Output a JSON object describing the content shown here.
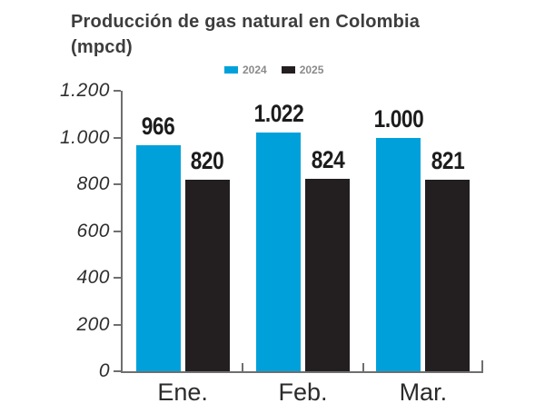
{
  "title": {
    "line1": "Producción de gas natural en Colombia",
    "line2": "(mpcd)"
  },
  "chart_data": {
    "type": "bar",
    "title": "Producción de gas natural en Colombia (mpcd)",
    "categories": [
      "Ene.",
      "Feb.",
      "Mar."
    ],
    "series": [
      {
        "name": "2024",
        "color": "#00a1db",
        "values": [
          966,
          1022,
          1000
        ],
        "value_labels": [
          "966",
          "1.022",
          "1.000"
        ]
      },
      {
        "name": "2025",
        "color": "#231f20",
        "values": [
          820,
          824,
          821
        ],
        "value_labels": [
          "820",
          "824",
          "821"
        ]
      }
    ],
    "ylim": [
      0,
      1200
    ],
    "ytick_step": 200,
    "ytick_labels": [
      "0",
      "200",
      "400",
      "600",
      "800",
      "1.000",
      "1.200"
    ],
    "grid": false,
    "legend_position": "top-center",
    "xlabel": "",
    "ylabel": ""
  }
}
